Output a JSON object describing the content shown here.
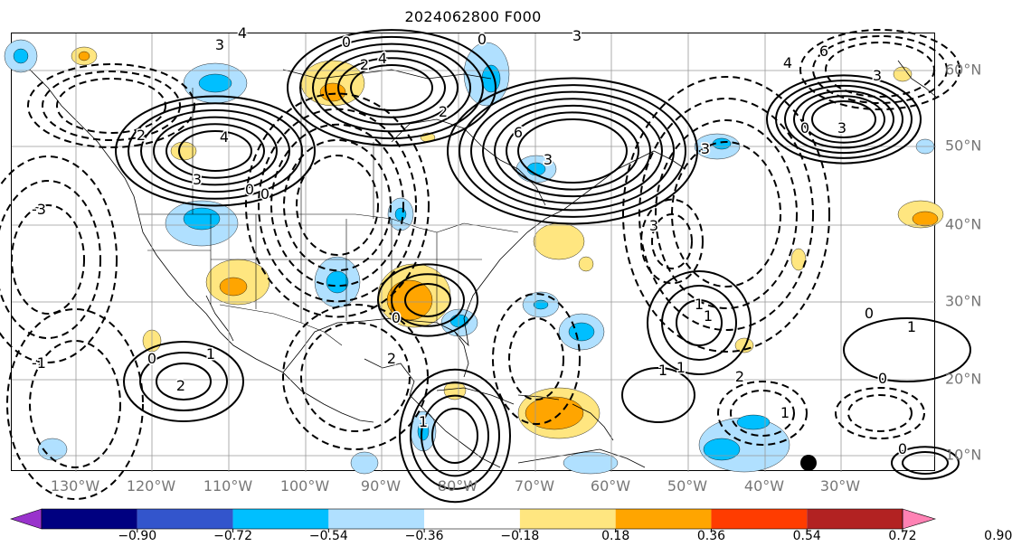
{
  "title": "2024062800 F000",
  "lon_labels": [
    "130°W",
    "120°W",
    "110°W",
    "100°W",
    "90°W",
    "80°W",
    "70°W",
    "60°W",
    "50°W",
    "40°W",
    "30°W"
  ],
  "lat_labels": [
    "60°N",
    "50°N",
    "40°N",
    "30°N",
    "20°N",
    "10°N"
  ],
  "colorbar": {
    "ticks": [
      "−0.90",
      "−0.72",
      "−0.54",
      "−0.36",
      "−0.18",
      "0.18",
      "0.36",
      "0.54",
      "0.72",
      "0.90"
    ],
    "colors": [
      "#9933cc",
      "#000080",
      "#3355cc",
      "#00bfff",
      "#b0e0ff",
      "#ffffff",
      "#ffe680",
      "#ffa500",
      "#ff3c00",
      "#b22222",
      "#ff82b4"
    ]
  },
  "fill_colors": {
    "light_blue": "#b0e0ff",
    "blue": "#00bfff",
    "light_yellow": "#ffe680",
    "orange": "#ffa500"
  },
  "contour_labels": [
    "3",
    "4",
    "0",
    "2",
    "4",
    "0",
    "6",
    "3",
    "2",
    "4",
    "3",
    "0",
    "6",
    "3",
    "3",
    "0",
    "2",
    "3",
    "0",
    "3",
    "4",
    "3",
    "-3",
    "1",
    "0",
    "2",
    "1",
    "1",
    "0",
    "1",
    "0",
    "-1",
    "0",
    "1",
    "1",
    "2",
    "2",
    "1",
    "0",
    "1"
  ]
}
